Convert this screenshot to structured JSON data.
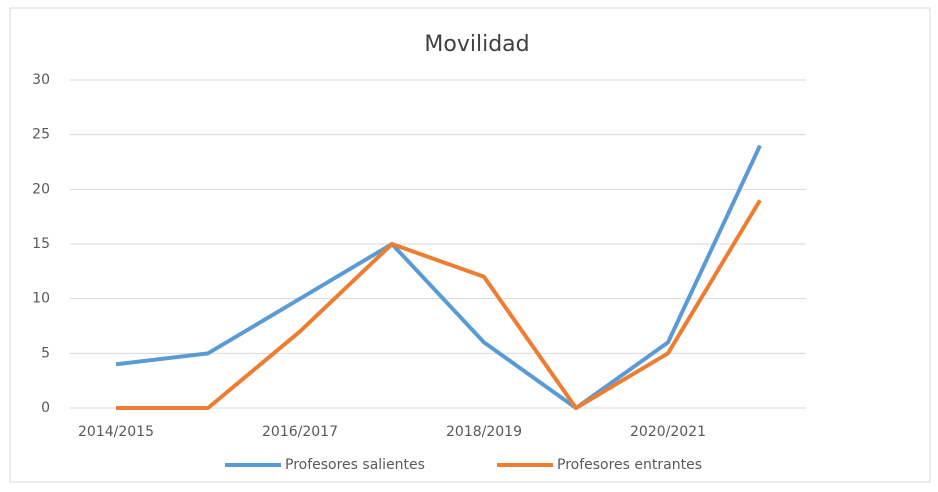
{
  "chart_data": {
    "type": "line",
    "title": "Movilidad",
    "categories": [
      "2014/2015",
      null,
      "2016/2017",
      null,
      "2018/2019",
      null,
      "2020/2021",
      null
    ],
    "series": [
      {
        "name": "Profesores salientes",
        "color": "#5b9bd5",
        "values": [
          4,
          5,
          10,
          15,
          6,
          0,
          6,
          24
        ]
      },
      {
        "name": "Profesores entrantes",
        "color": "#ed7d31",
        "values": [
          0,
          0,
          7,
          15,
          12,
          0,
          5,
          19
        ]
      }
    ],
    "ylim": [
      0,
      30
    ],
    "yticks": [
      0,
      5,
      10,
      15,
      20,
      25,
      30
    ],
    "grid": true,
    "legend": "bottom"
  }
}
